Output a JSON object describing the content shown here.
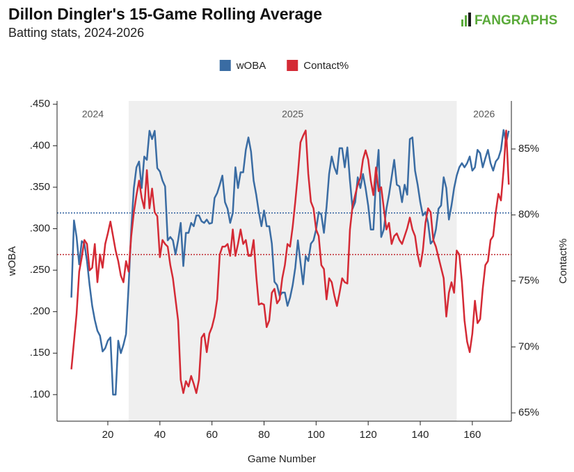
{
  "chart_data": {
    "type": "line",
    "title": "Dillon Dingler's 15-Game Rolling Average",
    "subtitle": "Batting stats, 2024-2026",
    "logo": "FANGRAPHS",
    "x_label": "Game Number",
    "y_label": "wOBA",
    "y2_label": "Contact%",
    "xlim": [
      0.5,
      175
    ],
    "xticks": [
      20,
      40,
      60,
      80,
      100,
      120,
      140,
      160
    ],
    "ylim": [
      0.068,
      0.454
    ],
    "yticks": [
      {
        "value": 0.1,
        "label": ".100"
      },
      {
        "value": 0.15,
        "label": ".150"
      },
      {
        "value": 0.2,
        "label": ".200"
      },
      {
        "value": 0.25,
        "label": ".250"
      },
      {
        "value": 0.3,
        "label": ".300"
      },
      {
        "value": 0.35,
        "label": ".350"
      },
      {
        "value": 0.4,
        "label": ".400"
      },
      {
        "value": 0.45,
        "label": ".450"
      }
    ],
    "y2lim": [
      64.37,
      88.64
    ],
    "y2ticks": [
      {
        "value": 65,
        "label": "65%"
      },
      {
        "value": 70,
        "label": "70%"
      },
      {
        "value": 75,
        "label": "75%"
      },
      {
        "value": 80,
        "label": "80%"
      },
      {
        "value": 85,
        "label": "85%"
      }
    ],
    "legend": "top",
    "seasons": [
      {
        "label": "2024",
        "start": 0.5,
        "end": 28
      },
      {
        "label": "2025",
        "start": 28,
        "end": 154,
        "shaded": true
      },
      {
        "label": "2026",
        "start": 154,
        "end": 175
      }
    ],
    "reference_lines": [
      {
        "value": 0.319,
        "axis": "y",
        "color": "#2f5f9e"
      },
      {
        "value": 77.0,
        "axis": "y2",
        "color": "#c0282f"
      }
    ],
    "x": [
      6,
      7,
      8,
      9,
      10,
      11,
      12,
      13,
      14,
      15,
      16,
      17,
      18,
      19,
      20,
      21,
      22,
      23,
      24,
      25,
      26,
      27,
      28,
      29,
      30,
      31,
      32,
      33,
      34,
      35,
      36,
      37,
      38,
      39,
      40,
      41,
      42,
      43,
      44,
      45,
      46,
      47,
      48,
      49,
      50,
      51,
      52,
      53,
      54,
      55,
      56,
      57,
      58,
      59,
      60,
      61,
      62,
      63,
      64,
      65,
      66,
      67,
      68,
      69,
      70,
      71,
      72,
      73,
      74,
      75,
      76,
      77,
      78,
      79,
      80,
      81,
      82,
      83,
      84,
      85,
      86,
      87,
      88,
      89,
      90,
      91,
      92,
      93,
      94,
      95,
      96,
      97,
      98,
      99,
      100,
      101,
      102,
      103,
      104,
      105,
      106,
      107,
      108,
      109,
      110,
      111,
      112,
      113,
      114,
      115,
      116,
      117,
      118,
      119,
      120,
      121,
      122,
      123,
      124,
      125,
      126,
      127,
      128,
      129,
      130,
      131,
      132,
      133,
      134,
      135,
      136,
      137,
      138,
      139,
      140,
      141,
      142,
      143,
      144,
      145,
      146,
      147,
      148,
      149,
      150,
      151,
      152,
      153,
      154,
      155,
      156,
      157,
      158,
      159,
      160,
      161,
      162,
      163,
      164,
      165,
      166,
      167,
      168,
      169,
      170,
      171,
      172,
      173,
      174
    ],
    "series": [
      {
        "name": "wOBA",
        "color": "#3a6ca3",
        "axis": "y",
        "values": [
          0.217,
          0.31,
          0.29,
          0.257,
          0.285,
          0.282,
          0.261,
          0.232,
          0.207,
          0.19,
          0.177,
          0.171,
          0.152,
          0.156,
          0.165,
          0.169,
          0.1,
          0.1,
          0.165,
          0.15,
          0.16,
          0.173,
          0.232,
          0.299,
          0.349,
          0.374,
          0.381,
          0.349,
          0.387,
          0.383,
          0.418,
          0.408,
          0.418,
          0.373,
          0.369,
          0.358,
          0.351,
          0.286,
          0.29,
          0.286,
          0.269,
          0.286,
          0.307,
          0.255,
          0.295,
          0.295,
          0.307,
          0.303,
          0.316,
          0.316,
          0.309,
          0.307,
          0.311,
          0.306,
          0.307,
          0.337,
          0.343,
          0.353,
          0.364,
          0.332,
          0.324,
          0.307,
          0.319,
          0.374,
          0.349,
          0.368,
          0.368,
          0.395,
          0.41,
          0.393,
          0.358,
          0.341,
          0.32,
          0.303,
          0.322,
          0.303,
          0.303,
          0.282,
          0.236,
          0.232,
          0.219,
          0.223,
          0.223,
          0.207,
          0.217,
          0.232,
          0.253,
          0.286,
          0.259,
          0.233,
          0.267,
          0.261,
          0.282,
          0.286,
          0.299,
          0.32,
          0.317,
          0.295,
          0.326,
          0.366,
          0.387,
          0.374,
          0.366,
          0.397,
          0.397,
          0.374,
          0.398,
          0.358,
          0.324,
          0.332,
          0.362,
          0.349,
          0.366,
          0.349,
          0.328,
          0.299,
          0.299,
          0.359,
          0.395,
          0.29,
          0.299,
          0.324,
          0.341,
          0.362,
          0.383,
          0.353,
          0.351,
          0.332,
          0.353,
          0.341,
          0.408,
          0.41,
          0.37,
          0.353,
          0.332,
          0.316,
          0.32,
          0.307,
          0.282,
          0.286,
          0.299,
          0.324,
          0.328,
          0.362,
          0.349,
          0.311,
          0.328,
          0.349,
          0.364,
          0.374,
          0.379,
          0.374,
          0.379,
          0.387,
          0.37,
          0.374,
          0.395,
          0.391,
          0.374,
          0.385,
          0.395,
          0.379,
          0.37,
          0.381,
          0.385,
          0.395,
          0.419,
          0.404,
          0.418
        ]
      },
      {
        "name": "Contact%",
        "color": "#d42a35",
        "axis": "y2",
        "values": [
          68.3,
          70.4,
          72.5,
          75.7,
          76.8,
          78.1,
          77.8,
          75.8,
          76.0,
          77.8,
          74.9,
          77.0,
          76.0,
          77.8,
          78.6,
          79.5,
          78.4,
          77.3,
          76.5,
          75.4,
          74.9,
          76.5,
          75.7,
          78.4,
          80.2,
          81.5,
          82.6,
          81.3,
          80.5,
          83.4,
          80.5,
          82.0,
          80.2,
          79.9,
          76.8,
          78.1,
          77.8,
          77.6,
          76.2,
          75.2,
          73.6,
          72.0,
          67.5,
          66.5,
          67.4,
          67.0,
          67.8,
          67.2,
          66.5,
          67.5,
          70.7,
          71.0,
          69.6,
          71.0,
          71.5,
          72.3,
          73.6,
          77.0,
          77.6,
          77.6,
          77.8,
          76.9,
          78.9,
          76.9,
          77.8,
          78.9,
          77.8,
          78.1,
          76.9,
          76.9,
          78.1,
          75.4,
          73.2,
          73.3,
          73.2,
          71.5,
          72.0,
          74.1,
          74.4,
          73.3,
          73.6,
          75.2,
          76.2,
          77.8,
          77.6,
          79.1,
          81.0,
          83.1,
          85.5,
          86.0,
          86.4,
          83.1,
          81.0,
          80.5,
          78.9,
          78.4,
          76.2,
          75.9,
          73.6,
          75.2,
          74.9,
          73.9,
          73.1,
          74.1,
          75.2,
          74.9,
          74.8,
          78.9,
          80.7,
          81.5,
          82.3,
          82.8,
          84.2,
          84.9,
          84.2,
          82.6,
          81.5,
          83.6,
          81.8,
          82.1,
          80.5,
          78.9,
          79.4,
          77.8,
          78.4,
          78.6,
          78.1,
          77.8,
          78.4,
          79.0,
          79.8,
          78.9,
          78.4,
          77.0,
          76.1,
          77.3,
          79.4,
          80.5,
          80.2,
          78.1,
          77.6,
          76.8,
          76.0,
          75.2,
          72.3,
          74.1,
          74.9,
          74.1,
          77.3,
          77.0,
          74.9,
          72.0,
          70.4,
          69.6,
          71.0,
          73.5,
          71.8,
          72.1,
          74.4,
          76.2,
          76.5,
          78.1,
          78.4,
          80.2,
          81.6,
          81.1,
          83.4,
          86.4,
          82.3
        ]
      }
    ]
  }
}
